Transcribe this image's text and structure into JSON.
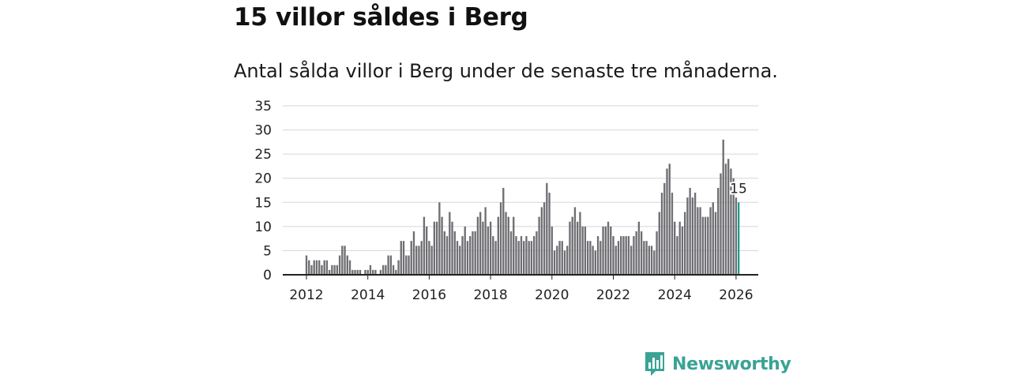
{
  "title": "15 villor såldes i Berg",
  "subtitle": "Antal sålda villor i Berg under de senaste tre månaderna.",
  "brand": {
    "name": "Newsworthy",
    "icon": "newsworthy-logo-icon"
  },
  "colors": {
    "bar": "#6e6e73",
    "highlight": "#1a9c8c",
    "grid": "#d6d6d6",
    "axis": "#222222",
    "brand": "#3aa394"
  },
  "chart_data": {
    "type": "bar",
    "title": "15 villor såldes i Berg",
    "xlabel": "",
    "ylabel": "",
    "ylim": [
      0,
      35
    ],
    "yticks": [
      0,
      5,
      10,
      15,
      20,
      25,
      30,
      35
    ],
    "xticks": [
      2012,
      2014,
      2016,
      2018,
      2020,
      2022,
      2024,
      2026
    ],
    "start_year": 2012,
    "months_per_bar": 1,
    "highlight_label": "15",
    "values": [
      4,
      3,
      2,
      3,
      3,
      3,
      2,
      3,
      3,
      1,
      2,
      2,
      2,
      4,
      6,
      6,
      4,
      3,
      1,
      1,
      1,
      1,
      0,
      1,
      1,
      2,
      1,
      1,
      0,
      1,
      2,
      2,
      4,
      4,
      2,
      1,
      3,
      7,
      7,
      4,
      4,
      7,
      9,
      6,
      6,
      7,
      12,
      10,
      7,
      6,
      11,
      11,
      15,
      12,
      9,
      8,
      13,
      11,
      9,
      7,
      6,
      8,
      10,
      7,
      8,
      9,
      9,
      12,
      13,
      11,
      14,
      10,
      11,
      8,
      7,
      12,
      15,
      18,
      13,
      12,
      9,
      12,
      8,
      7,
      8,
      7,
      8,
      7,
      7,
      8,
      9,
      12,
      14,
      15,
      19,
      17,
      10,
      5,
      6,
      7,
      7,
      5,
      6,
      11,
      12,
      14,
      11,
      13,
      10,
      10,
      7,
      7,
      6,
      5,
      8,
      7,
      10,
      10,
      11,
      10,
      8,
      6,
      7,
      8,
      8,
      8,
      8,
      6,
      8,
      9,
      11,
      9,
      7,
      7,
      6,
      6,
      5,
      9,
      13,
      17,
      19,
      22,
      23,
      17,
      11,
      8,
      11,
      10,
      13,
      16,
      18,
      16,
      17,
      14,
      14,
      12,
      12,
      12,
      14,
      15,
      13,
      18,
      21,
      28,
      23,
      24,
      22,
      20,
      16,
      15
    ]
  }
}
